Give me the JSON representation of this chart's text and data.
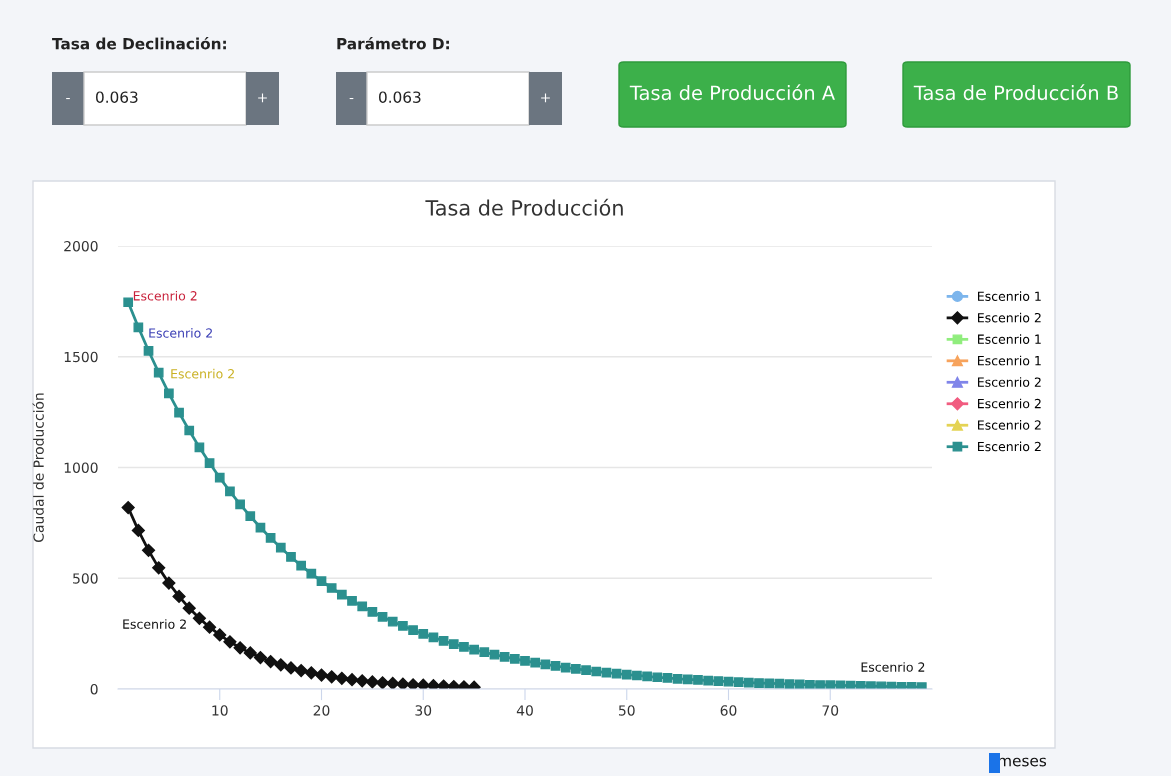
{
  "chart_data": [
    {
      "type": "other",
      "annotations": [
        "Tasa de Declinación:",
        "-",
        "0.063",
        "+",
        "Parámetro D:",
        "-",
        "0.063",
        "+",
        "Tasa de Producción A",
        "Tasa de Producción B"
      ]
    },
    {
      "type": "line",
      "title": "Tasa de Producción",
      "xlabel": "meses",
      "ylabel": "Caudal de Producción",
      "xlim": [
        0,
        80
      ],
      "xticks": [
        10,
        20,
        30,
        40,
        50,
        60,
        70
      ],
      "ylim": [
        0,
        2000
      ],
      "yticks": [
        0,
        500,
        1000,
        1500,
        2000
      ],
      "grid": "y",
      "legend": "right",
      "line_style": "solid",
      "series": [
        {
          "name": "Escenrio 1",
          "color": "#7cb5ec",
          "marker": "circle"
        },
        {
          "name": "Escenrio 2",
          "color": "#111111",
          "marker": "diamond",
          "x": [
            1,
            2,
            3,
            4,
            5,
            6,
            7,
            8,
            9,
            10,
            11,
            12,
            13,
            14,
            15,
            16,
            17,
            18,
            19,
            20,
            21,
            22,
            23,
            24,
            25,
            26,
            27,
            28,
            29,
            30,
            31,
            32,
            33,
            34,
            35
          ],
          "values": [
            819,
            716,
            626,
            547,
            478,
            418,
            365,
            319,
            279,
            244,
            213,
            186,
            163,
            142,
            124,
            109,
            95,
            83,
            73,
            63,
            55,
            48,
            42,
            37,
            32,
            28,
            25,
            22,
            19,
            17,
            15,
            13,
            11,
            10,
            8
          ]
        },
        {
          "name": "Escenrio 1",
          "color": "#90ed7d",
          "marker": "square"
        },
        {
          "name": "Escenrio 1",
          "color": "#f7a35c",
          "marker": "triangle"
        },
        {
          "name": "Escenrio 2",
          "color": "#8085e9",
          "marker": "triangle"
        },
        {
          "name": "Escenrio 2",
          "color": "#f15c80",
          "marker": "diamond"
        },
        {
          "name": "Escenrio 2",
          "color": "#e4d354",
          "marker": "triangle"
        },
        {
          "name": "Escenrio 2",
          "color": "#2b908f",
          "marker": "square",
          "x": [
            1,
            2,
            3,
            4,
            5,
            6,
            7,
            8,
            9,
            10,
            11,
            12,
            13,
            14,
            15,
            16,
            17,
            18,
            19,
            20,
            21,
            22,
            23,
            24,
            25,
            26,
            27,
            28,
            29,
            30,
            31,
            32,
            33,
            34,
            35,
            36,
            37,
            38,
            39,
            40,
            41,
            42,
            43,
            44,
            45,
            46,
            47,
            48,
            49,
            50,
            51,
            52,
            53,
            54,
            55,
            56,
            57,
            58,
            59,
            60,
            61,
            62,
            63,
            64,
            65,
            66,
            67,
            68,
            69,
            70,
            71,
            72,
            73,
            74,
            75,
            76,
            77,
            78,
            79
          ],
          "values": [
            1746,
            1633,
            1527,
            1428,
            1335,
            1248,
            1167,
            1091,
            1020,
            954,
            892,
            834,
            780,
            729,
            682,
            638,
            596,
            557,
            521,
            487,
            456,
            426,
            398,
            373,
            348,
            326,
            304,
            285,
            266,
            249,
            233,
            217,
            203,
            190,
            178,
            166,
            155,
            145,
            136,
            127,
            119,
            111,
            104,
            97,
            91,
            85,
            79,
            74,
            69,
            65,
            61,
            57,
            53,
            50,
            46,
            43,
            41,
            38,
            36,
            33,
            31,
            29,
            27,
            25,
            24,
            22,
            21,
            19,
            18,
            17,
            16,
            15,
            14,
            13,
            12,
            11,
            10,
            10,
            9
          ]
        }
      ],
      "annotations": [
        "Escenrio 2",
        "Escenrio 2",
        "Escenrio 2",
        "Escenrio 2",
        "Escenrio 2"
      ]
    }
  ]
}
